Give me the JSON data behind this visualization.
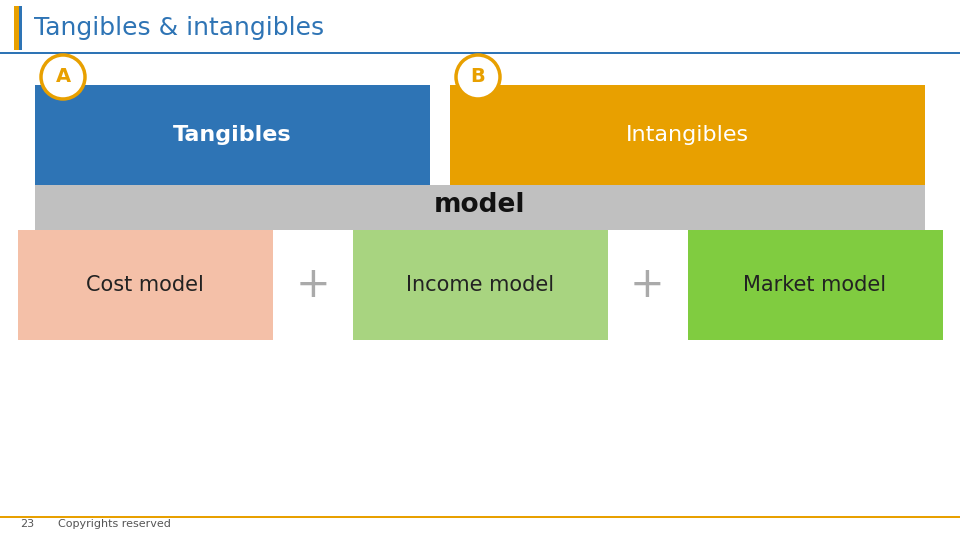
{
  "title": "Tangibles & intangibles",
  "title_color": "#2E74B5",
  "title_fontsize": 18,
  "background_color": "#FFFFFF",
  "blue_accent_color": "#2E74B5",
  "yellow_accent_color": "#E8A000",
  "tangibles_box_color": "#2E74B5",
  "intangibles_box_color": "#E8A000",
  "tangibles_label": "Tangibles",
  "intangibles_label": "Intangibles",
  "model_label": "model",
  "funnel_color": "#C0C0C0",
  "cost_box_color": "#F4C0A8",
  "income_box_color": "#A8D480",
  "market_box_color": "#80CC40",
  "cost_label": "Cost model",
  "income_label": "Income model",
  "market_label": "Market model",
  "plus_color": "#AAAAAA",
  "a_circle_border": "#E8A000",
  "b_circle_border": "#E8A000",
  "a_label": "A",
  "b_label": "B",
  "footer_text": "Copyrights reserved",
  "footer_num": "23",
  "footer_line_color": "#E8A000"
}
